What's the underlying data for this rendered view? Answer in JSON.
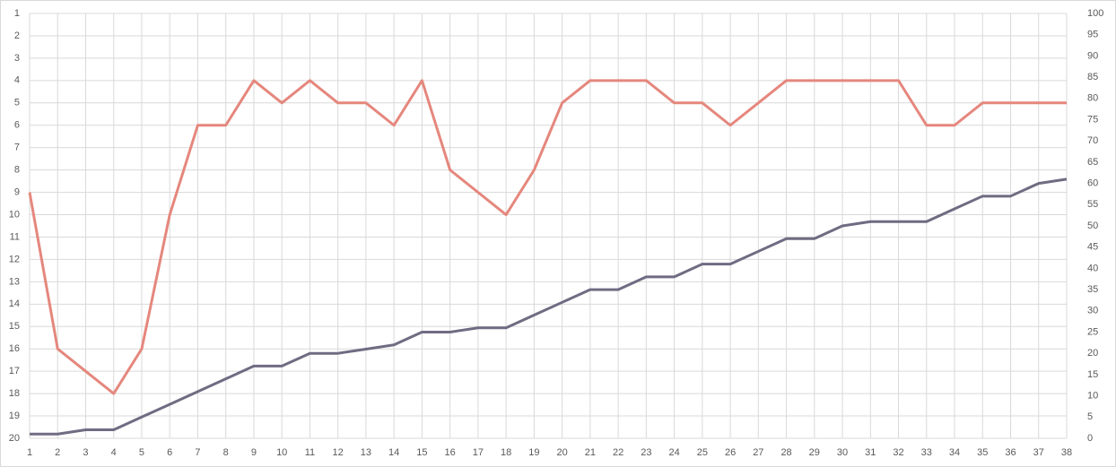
{
  "chart_data": {
    "type": "line",
    "categories": [
      1,
      2,
      3,
      4,
      5,
      6,
      7,
      8,
      9,
      10,
      11,
      12,
      13,
      14,
      15,
      16,
      17,
      18,
      19,
      20,
      21,
      22,
      23,
      24,
      25,
      26,
      27,
      28,
      29,
      30,
      31,
      32,
      33,
      34,
      35,
      36,
      37,
      38
    ],
    "series": [
      {
        "color": "#e5877d",
        "axis": "y",
        "values": [
          9,
          16,
          17,
          18,
          16,
          10,
          6,
          6,
          4,
          5,
          4,
          5,
          5,
          6,
          4,
          8,
          9,
          10,
          8,
          5,
          4,
          4,
          4,
          5,
          5,
          6,
          5,
          4,
          4,
          4,
          4,
          4,
          6,
          6,
          5,
          5,
          5,
          5
        ]
      },
      {
        "color": "#706b82",
        "axis": "y2",
        "values": [
          1,
          1,
          2,
          2,
          5,
          8,
          11,
          14,
          17,
          17,
          20,
          20,
          21,
          22,
          25,
          25,
          26,
          26,
          29,
          32,
          35,
          35,
          38,
          38,
          41,
          41,
          44,
          47,
          47,
          50,
          51,
          51,
          51,
          54,
          57,
          57,
          60,
          61
        ]
      }
    ],
    "ylim": [
      1,
      20
    ],
    "y_inverted": true,
    "yticks": [
      1,
      2,
      3,
      4,
      5,
      6,
      7,
      8,
      9,
      10,
      11,
      12,
      13,
      14,
      15,
      16,
      17,
      18,
      19,
      20
    ],
    "y2lim": [
      0,
      100
    ],
    "y2ticks": [
      0,
      5,
      10,
      15,
      20,
      25,
      30,
      35,
      40,
      45,
      50,
      55,
      60,
      65,
      70,
      75,
      80,
      85,
      90,
      95,
      100
    ],
    "grid": true
  }
}
